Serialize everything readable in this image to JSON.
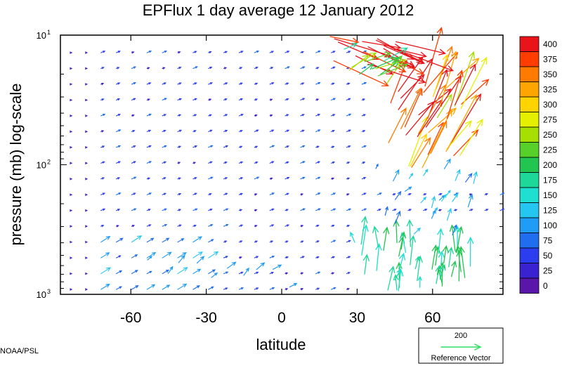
{
  "chart_data": {
    "type": "vector-field",
    "title": "EPFlux  1 day average  12 January   2012",
    "xlabel": "latitude",
    "ylabel": "pressure (mb)  log-scale",
    "xlim": [
      -88,
      88
    ],
    "ylim": [
      1000,
      10
    ],
    "y_scale": "log",
    "x_ticks": [
      -60,
      -30,
      0,
      30,
      60
    ],
    "y_tick_labels": [
      {
        "value": 10,
        "base": "10",
        "exp": "1"
      },
      {
        "value": 100,
        "base": "10",
        "exp": "2"
      },
      {
        "value": 1000,
        "base": "10",
        "exp": "3"
      }
    ],
    "colorbar": {
      "levels": [
        "400",
        "375",
        "350",
        "325",
        "300",
        "275",
        "250",
        "225",
        "200",
        "175",
        "150",
        "125",
        "100",
        "75",
        "50",
        "25",
        "0"
      ],
      "colors": [
        "#e8141a",
        "#ff3d00",
        "#ff7a00",
        "#ffa500",
        "#ffd400",
        "#e4f000",
        "#a6e000",
        "#58d02a",
        "#21c550",
        "#1ed89a",
        "#1ee0d0",
        "#25c7f0",
        "#1f9cf5",
        "#1f6ef0",
        "#2a3ef0",
        "#3a22d0",
        "#5a16a8"
      ]
    },
    "reference_vector": {
      "value": "200",
      "label": "Reference Vector",
      "color": "#33dd66"
    },
    "source_label": "NOAA/PSL"
  }
}
